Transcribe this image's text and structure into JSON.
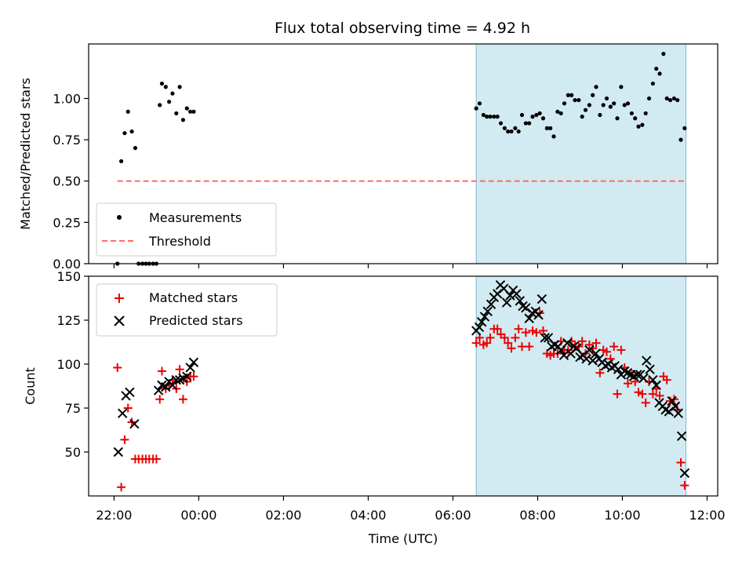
{
  "title": "Flux total observing time = 4.92 h",
  "colors": {
    "measurement": "#000000",
    "threshold": "#ff6b6b",
    "matched": "#ee0000",
    "predicted": "#000000",
    "shade": "#add8e6"
  },
  "chart_data": [
    {
      "type": "scatter",
      "ylabel": "Matched/Predicted stars",
      "ylim": [
        0,
        1.33
      ],
      "yticks": [
        0,
        0.25,
        0.5,
        0.75,
        1.0
      ],
      "ytick_labels": [
        "0.00",
        "0.25",
        "0.50",
        "0.75",
        "1.00"
      ],
      "xlim": [
        21.4,
        36.25
      ],
      "xticks": [
        22,
        24,
        26,
        28,
        30,
        32,
        34,
        36
      ],
      "shaded_region": [
        30.55,
        35.5
      ],
      "legend": {
        "position": "lower-left",
        "entries": [
          "Measurements",
          "Threshold"
        ]
      },
      "threshold": {
        "name": "Threshold",
        "value": 0.5,
        "x_range": [
          22.08,
          35.5
        ]
      },
      "series": [
        {
          "name": "Measurements",
          "x": [
            22.08,
            22.17,
            22.25,
            22.33,
            22.42,
            22.5,
            22.58,
            22.67,
            22.75,
            22.83,
            22.92,
            23.0,
            23.08,
            23.13,
            23.22,
            23.3,
            23.38,
            23.47,
            23.55,
            23.63,
            23.72,
            23.8,
            23.88,
            30.55,
            30.63,
            30.72,
            30.8,
            30.88,
            30.97,
            31.05,
            31.13,
            31.22,
            31.3,
            31.38,
            31.47,
            31.55,
            31.63,
            31.72,
            31.8,
            31.88,
            31.97,
            32.05,
            32.13,
            32.22,
            32.3,
            32.38,
            32.47,
            32.55,
            32.63,
            32.72,
            32.8,
            32.88,
            32.97,
            33.05,
            33.13,
            33.22,
            33.3,
            33.38,
            33.47,
            33.55,
            33.63,
            33.72,
            33.8,
            33.88,
            33.97,
            34.05,
            34.13,
            34.22,
            34.3,
            34.38,
            34.47,
            34.55,
            34.63,
            34.72,
            34.8,
            34.88,
            34.97,
            35.05,
            35.13,
            35.22,
            35.3,
            35.38,
            35.47
          ],
          "y": [
            0.0,
            0.62,
            0.79,
            0.92,
            0.8,
            0.7,
            0.0,
            0.0,
            0.0,
            0.0,
            0.0,
            0.0,
            0.96,
            1.09,
            1.07,
            0.98,
            1.03,
            0.91,
            1.07,
            0.87,
            0.94,
            0.92,
            0.92,
            0.94,
            0.97,
            0.9,
            0.89,
            0.89,
            0.89,
            0.89,
            0.85,
            0.82,
            0.8,
            0.8,
            0.82,
            0.8,
            0.9,
            0.85,
            0.85,
            0.89,
            0.9,
            0.91,
            0.88,
            0.82,
            0.82,
            0.77,
            0.92,
            0.91,
            0.97,
            1.02,
            1.02,
            0.99,
            0.99,
            0.89,
            0.93,
            0.96,
            1.02,
            1.07,
            0.9,
            0.96,
            1.0,
            0.95,
            0.97,
            0.88,
            1.07,
            0.96,
            0.97,
            0.91,
            0.88,
            0.83,
            0.84,
            0.91,
            1.0,
            1.09,
            1.18,
            1.15,
            1.27,
            1.0,
            0.99,
            1.0,
            0.99,
            0.75,
            0.82
          ]
        }
      ]
    },
    {
      "type": "scatter",
      "ylabel": "Count",
      "xlabel": "Time (UTC)",
      "ylim": [
        25,
        150
      ],
      "yticks": [
        50,
        75,
        100,
        125,
        150
      ],
      "ytick_labels": [
        "50",
        "75",
        "100",
        "125",
        "150"
      ],
      "xlim": [
        21.4,
        36.25
      ],
      "xticks": [
        22,
        24,
        26,
        28,
        30,
        32,
        34,
        36
      ],
      "xtick_labels": [
        "22:00",
        "00:00",
        "02:00",
        "04:00",
        "06:00",
        "08:00",
        "10:00",
        "12:00"
      ],
      "shaded_region": [
        30.55,
        35.5
      ],
      "legend": {
        "position": "upper-left",
        "entries": [
          "Matched stars",
          "Predicted stars"
        ]
      },
      "series": [
        {
          "name": "Matched stars",
          "marker": "+",
          "x": [
            22.08,
            22.17,
            22.25,
            22.33,
            22.42,
            22.5,
            22.58,
            22.67,
            22.75,
            22.83,
            22.92,
            23.0,
            23.08,
            23.13,
            23.22,
            23.3,
            23.38,
            23.47,
            23.55,
            23.63,
            23.72,
            23.8,
            23.88,
            30.55,
            30.63,
            30.72,
            30.8,
            30.88,
            30.97,
            31.05,
            31.13,
            31.22,
            31.3,
            31.38,
            31.47,
            31.55,
            31.63,
            31.72,
            31.8,
            31.88,
            31.97,
            32.05,
            32.13,
            32.22,
            32.3,
            32.38,
            32.47,
            32.55,
            32.63,
            32.72,
            32.8,
            32.88,
            32.97,
            33.05,
            33.13,
            33.22,
            33.3,
            33.38,
            33.47,
            33.55,
            33.63,
            33.72,
            33.8,
            33.88,
            33.97,
            34.05,
            34.13,
            34.22,
            34.3,
            34.38,
            34.47,
            34.55,
            34.63,
            34.72,
            34.8,
            34.88,
            34.97,
            35.05,
            35.13,
            35.22,
            35.3,
            35.38,
            35.47
          ],
          "y": [
            98,
            30,
            57,
            75,
            67,
            46,
            46,
            46,
            46,
            46,
            46,
            46,
            80,
            96,
            86,
            88,
            91,
            86,
            97,
            80,
            90,
            93,
            93,
            112,
            115,
            111,
            112,
            115,
            120,
            120,
            117,
            115,
            112,
            109,
            115,
            120,
            110,
            118,
            110,
            119,
            118,
            129,
            119,
            106,
            105,
            106,
            106,
            113,
            108,
            108,
            113,
            110,
            110,
            113,
            106,
            111,
            109,
            112,
            95,
            108,
            107,
            103,
            110,
            83,
            108,
            98,
            89,
            94,
            90,
            84,
            83,
            78,
            90,
            83,
            86,
            82,
            93,
            91,
            79,
            80,
            74,
            44,
            31
          ]
        },
        {
          "name": "Predicted stars",
          "marker": "x",
          "x": [
            22.1,
            22.2,
            22.28,
            22.37,
            22.48,
            23.05,
            23.13,
            23.22,
            23.3,
            23.38,
            23.47,
            23.55,
            23.63,
            23.72,
            23.8,
            23.88,
            30.55,
            30.62,
            30.68,
            30.75,
            30.82,
            30.9,
            30.97,
            31.05,
            31.12,
            31.2,
            31.27,
            31.35,
            31.42,
            31.5,
            31.58,
            31.65,
            31.72,
            31.8,
            31.87,
            31.95,
            32.02,
            32.1,
            32.17,
            32.25,
            32.33,
            32.4,
            32.48,
            32.55,
            32.62,
            32.7,
            32.78,
            32.85,
            32.92,
            33.0,
            33.07,
            33.15,
            33.22,
            33.3,
            33.37,
            33.45,
            33.52,
            33.6,
            33.67,
            33.75,
            33.82,
            33.9,
            33.97,
            34.05,
            34.12,
            34.2,
            34.27,
            34.35,
            34.42,
            34.5,
            34.57,
            34.65,
            34.72,
            34.8,
            34.87,
            34.95,
            35.02,
            35.1,
            35.17,
            35.25,
            35.32,
            35.4,
            35.47
          ],
          "y": [
            50,
            72,
            82,
            84,
            66,
            85,
            88,
            87,
            90,
            88,
            91,
            91,
            92,
            93,
            98,
            101,
            119,
            121,
            124,
            127,
            130,
            134,
            138,
            140,
            145,
            143,
            135,
            139,
            142,
            140,
            136,
            133,
            132,
            126,
            129,
            130,
            128,
            137,
            115,
            115,
            110,
            111,
            110,
            108,
            105,
            112,
            106,
            110,
            109,
            104,
            105,
            103,
            108,
            102,
            106,
            103,
            101,
            99,
            100,
            98,
            99,
            97,
            94,
            96,
            95,
            94,
            93,
            94,
            94,
            92,
            102,
            97,
            91,
            88,
            78,
            76,
            74,
            73,
            79,
            76,
            72,
            59,
            38
          ]
        }
      ]
    }
  ]
}
